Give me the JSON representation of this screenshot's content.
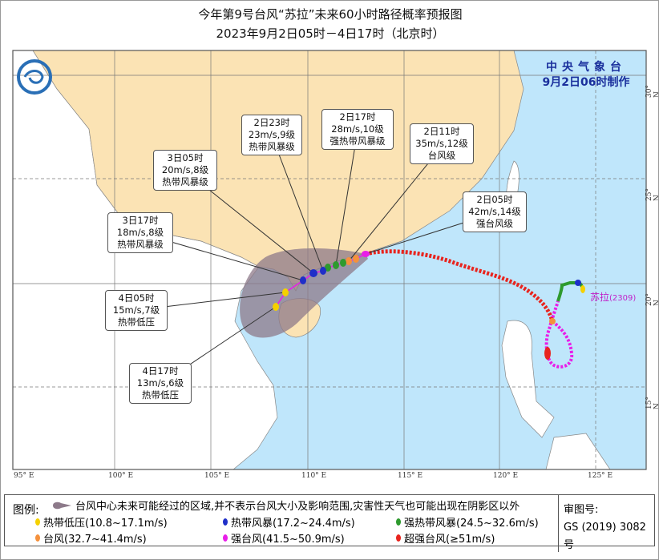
{
  "title": {
    "line1": "今年第9号台风“苏拉”未来60小时路径概率预报图",
    "line2": "2023年9月2日05时－4日17时（北京时）"
  },
  "issuer": {
    "name": "中央气象台",
    "time": "9月2日06时制作"
  },
  "typhoon": {
    "name": "苏拉",
    "number": "(2309)"
  },
  "longitude_labels": [
    "95° E",
    "100° E",
    "105° E",
    "110° E",
    "115° E",
    "120° E",
    "125° E"
  ],
  "latitude_labels": [
    "30° N",
    "25° N",
    "20° N",
    "15° N"
  ],
  "forecast_points": [
    {
      "time": "2日05时",
      "wind": "42m/s,14级",
      "grade": "强台风级"
    },
    {
      "time": "2日11时",
      "wind": "35m/s,12级",
      "grade": "台风级"
    },
    {
      "time": "2日17时",
      "wind": "28m/s,10级",
      "grade": "强热带风暴级"
    },
    {
      "time": "2日23时",
      "wind": "23m/s,9级",
      "grade": "热带风暴级"
    },
    {
      "time": "3日05时",
      "wind": "20m/s,8级",
      "grade": "热带风暴级"
    },
    {
      "time": "3日17时",
      "wind": "18m/s,8级",
      "grade": "热带风暴级"
    },
    {
      "time": "4日05时",
      "wind": "15m/s,7级",
      "grade": "热带低压"
    },
    {
      "time": "4日17时",
      "wind": "13m/s,6级",
      "grade": "热带低压"
    }
  ],
  "colors": {
    "sea": "#bfe6fb",
    "china": "#fbe3b4",
    "other_land": "#ffffff",
    "cone": "#8d7a8a",
    "td": "#f5d100",
    "ts": "#1f2fc8",
    "sts": "#2e9a2e",
    "ty": "#f5913c",
    "sty": "#e81ee8",
    "super_ty": "#e8241e"
  },
  "legend": {
    "label": "图例:",
    "cone": "台风中心未来可能经过的区域,并不表示台风大小及影响范围,灾害性天气也可能出现在阴影区以外",
    "items": [
      {
        "label": "热带低压(10.8~17.1m/s)",
        "color": "#f5d100"
      },
      {
        "label": "热带风暴(17.2~24.4m/s)",
        "color": "#1f2fc8"
      },
      {
        "label": "强热带风暴(24.5~32.6m/s)",
        "color": "#2e9a2e"
      },
      {
        "label": "台风(32.7~41.4m/s)",
        "color": "#f5913c"
      },
      {
        "label": "强台风(41.5~50.9m/s)",
        "color": "#e81ee8"
      },
      {
        "label": "超强台风(≥51m/s)",
        "color": "#e8241e"
      }
    ],
    "review_label": "审图号:",
    "review_number": "GS (2019) 3082号"
  }
}
